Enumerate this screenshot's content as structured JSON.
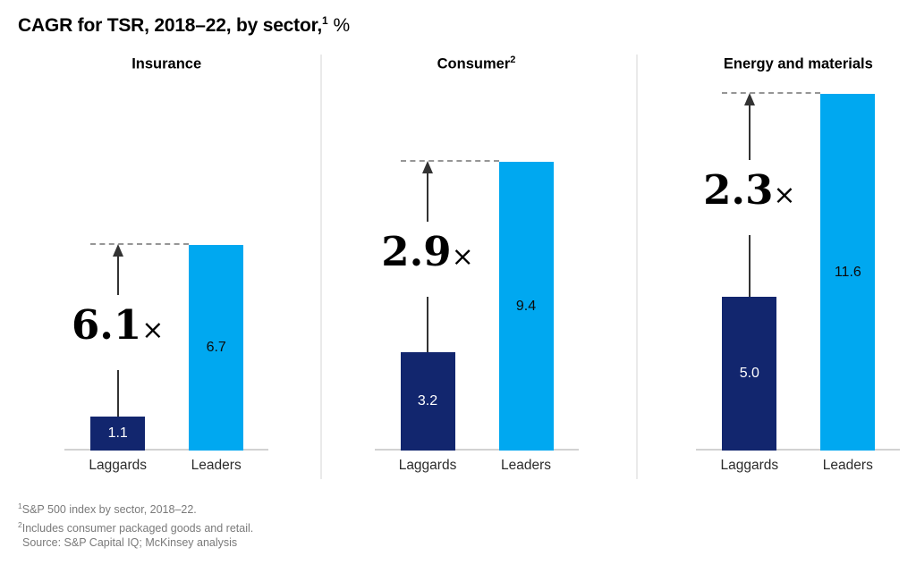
{
  "title": {
    "text": "CAGR for TSR, 2018–22, by sector,",
    "sup": "1",
    "suffix": "%"
  },
  "chart_data": {
    "type": "bar",
    "title": "CAGR for TSR, 2018–22, by sector, %",
    "unit": "%",
    "categories": [
      "Laggards",
      "Leaders"
    ],
    "ylim": [
      0,
      12
    ],
    "grid": false,
    "legend": false,
    "panels": [
      {
        "header": "Insurance",
        "header_sup": "",
        "values": {
          "laggards": 1.1,
          "leaders": 6.7
        },
        "labels": {
          "laggards": "1.1",
          "leaders": "6.7"
        },
        "multiplier": "6.1",
        "multiplier_symbol": "×"
      },
      {
        "header": "Consumer",
        "header_sup": "2",
        "values": {
          "laggards": 3.2,
          "leaders": 9.4
        },
        "labels": {
          "laggards": "3.2",
          "leaders": "9.4"
        },
        "multiplier": "2.9",
        "multiplier_symbol": "×"
      },
      {
        "header": "Energy and materials",
        "header_sup": "",
        "values": {
          "laggards": 5.0,
          "leaders": 11.6
        },
        "labels": {
          "laggards": "5.0",
          "leaders": "11.6"
        },
        "multiplier": "2.3",
        "multiplier_symbol": "×"
      }
    ]
  },
  "footnotes": [
    {
      "sup": "1",
      "text": "S&P 500 index by sector, 2018–22."
    },
    {
      "sup": "2",
      "text": "Includes consumer packaged goods and retail."
    }
  ],
  "source": "Source: S&P Capital IQ; McKinsey analysis",
  "colors": {
    "laggards_bar": "#12266E",
    "leaders_bar": "#00A8F0",
    "laggards_value_text": "#FFFFFF",
    "leaders_value_text": "#0B0B0B",
    "axis_line": "#D2D2D2",
    "panel_divider": "#EAEAEA",
    "dashed_line": "#969696",
    "arrow": "#333333",
    "footnote_text": "#7A7A7A",
    "title_text": "#000000"
  }
}
